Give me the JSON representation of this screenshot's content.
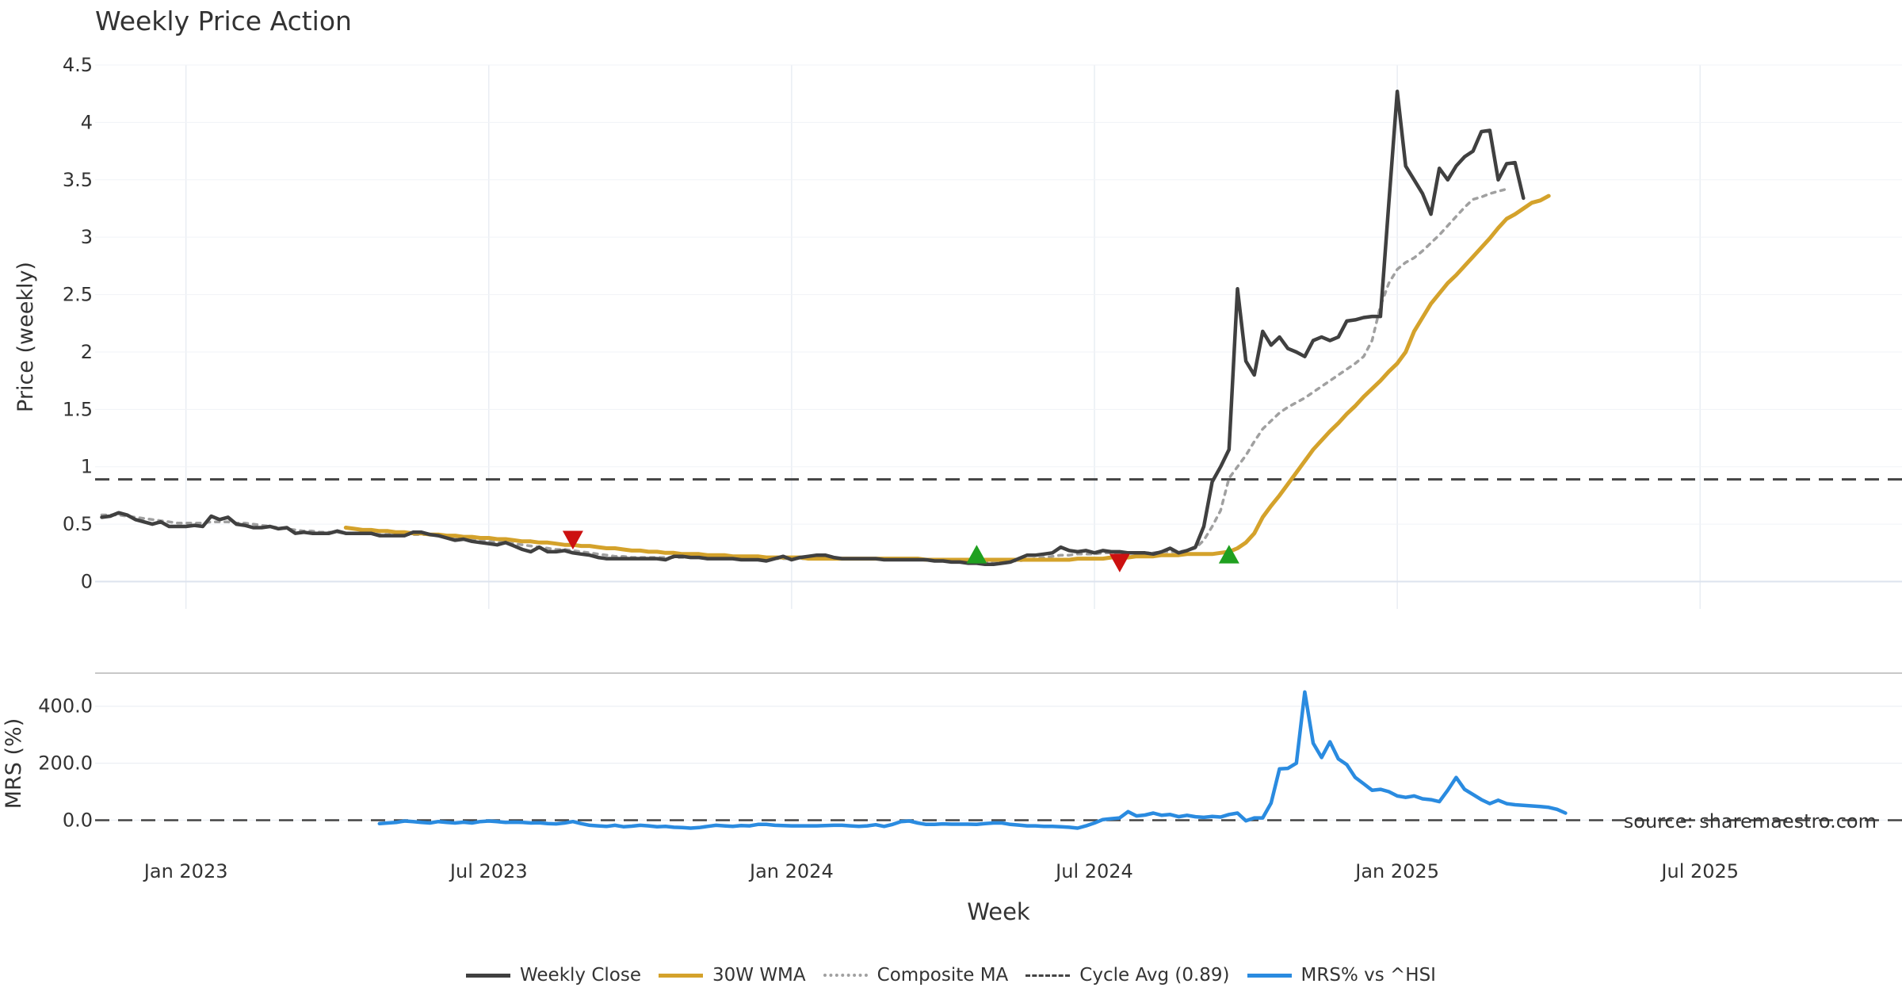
{
  "chart_data": {
    "type": "line",
    "title": "Weekly Price Action",
    "source_note": "source: sharemaestro.com",
    "xlabel": "Week",
    "x_ticks": [
      "Jan 2023",
      "Jul 2023",
      "Jan 2024",
      "Jul 2024",
      "Jan 2025",
      "Jul 2025"
    ],
    "x_tick_weeks": [
      10,
      46,
      82,
      118,
      154,
      190
    ],
    "x_range_weeks": [
      -0.8,
      214
    ],
    "price_panel": {
      "ylabel": "Price (weekly)",
      "ylim": [
        -0.1,
        4.5
      ],
      "y_ticks": [
        "0",
        "0.5",
        "1",
        "1.5",
        "2",
        "2.5",
        "3",
        "3.5",
        "4",
        "4.5"
      ],
      "y_tick_values": [
        0,
        0.5,
        1,
        1.5,
        2,
        2.5,
        3,
        3.5,
        4,
        4.5
      ],
      "cycle_avg": 0.89
    },
    "mrs_panel": {
      "ylabel": "MRS (%)",
      "ylim": [
        -60,
        480
      ],
      "y_ticks": [
        "0.0",
        "200.0",
        "400.0"
      ],
      "y_tick_values": [
        0,
        200,
        400
      ],
      "zero_line": 0
    },
    "series": [
      {
        "name": "Weekly Close",
        "color": "#404040",
        "start_week": 0,
        "values": [
          0.56,
          0.57,
          0.6,
          0.58,
          0.54,
          0.52,
          0.5,
          0.52,
          0.48,
          0.48,
          0.48,
          0.49,
          0.48,
          0.57,
          0.54,
          0.56,
          0.5,
          0.49,
          0.47,
          0.47,
          0.48,
          0.46,
          0.47,
          0.42,
          0.43,
          0.42,
          0.42,
          0.42,
          0.44,
          0.42,
          0.42,
          0.42,
          0.42,
          0.4,
          0.4,
          0.4,
          0.4,
          0.43,
          0.43,
          0.41,
          0.4,
          0.38,
          0.36,
          0.37,
          0.35,
          0.34,
          0.33,
          0.32,
          0.34,
          0.31,
          0.28,
          0.26,
          0.3,
          0.26,
          0.26,
          0.27,
          0.25,
          0.24,
          0.23,
          0.21,
          0.2,
          0.2,
          0.2,
          0.2,
          0.2,
          0.2,
          0.2,
          0.19,
          0.22,
          0.22,
          0.21,
          0.21,
          0.2,
          0.2,
          0.2,
          0.2,
          0.19,
          0.19,
          0.19,
          0.18,
          0.2,
          0.22,
          0.19,
          0.21,
          0.22,
          0.23,
          0.23,
          0.21,
          0.2,
          0.2,
          0.2,
          0.2,
          0.2,
          0.19,
          0.19,
          0.19,
          0.19,
          0.19,
          0.19,
          0.18,
          0.18,
          0.17,
          0.17,
          0.16,
          0.16,
          0.15,
          0.15,
          0.16,
          0.17,
          0.2,
          0.23,
          0.23,
          0.24,
          0.25,
          0.3,
          0.27,
          0.26,
          0.27,
          0.25,
          0.27,
          0.26,
          0.26,
          0.25,
          0.25,
          0.25,
          0.24,
          0.26,
          0.29,
          0.25,
          0.27,
          0.3,
          0.48,
          0.87,
          1.0,
          1.15,
          2.55,
          1.92,
          1.8,
          2.18,
          2.06,
          2.13,
          2.03,
          2.0,
          1.96,
          2.1,
          2.13,
          2.1,
          2.13,
          2.27,
          2.28,
          2.3,
          2.31,
          2.31,
          3.3,
          4.27,
          3.62,
          3.5,
          3.38,
          3.2,
          3.6,
          3.5,
          3.62,
          3.7,
          3.75,
          3.92,
          3.93,
          3.5,
          3.64,
          3.65,
          3.34
        ]
      },
      {
        "name": "30W WMA",
        "color": "#d4a22b",
        "start_week": 29,
        "values": [
          0.47,
          0.46,
          0.45,
          0.45,
          0.44,
          0.44,
          0.43,
          0.43,
          0.42,
          0.42,
          0.41,
          0.41,
          0.4,
          0.4,
          0.39,
          0.39,
          0.38,
          0.38,
          0.37,
          0.37,
          0.36,
          0.35,
          0.35,
          0.34,
          0.34,
          0.33,
          0.32,
          0.32,
          0.31,
          0.31,
          0.3,
          0.29,
          0.29,
          0.28,
          0.27,
          0.27,
          0.26,
          0.26,
          0.25,
          0.25,
          0.24,
          0.24,
          0.24,
          0.23,
          0.23,
          0.23,
          0.22,
          0.22,
          0.22,
          0.22,
          0.21,
          0.21,
          0.21,
          0.21,
          0.21,
          0.2,
          0.2,
          0.2,
          0.2,
          0.2,
          0.2,
          0.2,
          0.2,
          0.2,
          0.2,
          0.2,
          0.2,
          0.2,
          0.2,
          0.19,
          0.19,
          0.19,
          0.19,
          0.19,
          0.19,
          0.19,
          0.19,
          0.19,
          0.19,
          0.19,
          0.19,
          0.19,
          0.19,
          0.19,
          0.19,
          0.19,
          0.19,
          0.2,
          0.2,
          0.2,
          0.2,
          0.21,
          0.21,
          0.21,
          0.22,
          0.22,
          0.22,
          0.23,
          0.23,
          0.23,
          0.24,
          0.24,
          0.24,
          0.24,
          0.25,
          0.26,
          0.29,
          0.34,
          0.42,
          0.56,
          0.66,
          0.75,
          0.85,
          0.95,
          1.05,
          1.15,
          1.23,
          1.31,
          1.38,
          1.46,
          1.53,
          1.61,
          1.68,
          1.75,
          1.83,
          1.9,
          2.0,
          2.18,
          2.3,
          2.42,
          2.51,
          2.6,
          2.67,
          2.75,
          2.83,
          2.91,
          2.99,
          3.08,
          3.16,
          3.2,
          3.25,
          3.3,
          3.32,
          3.36
        ]
      },
      {
        "name": "Composite MA",
        "color": "#a0a0a0",
        "start_week": 0,
        "values": [
          0.58,
          0.58,
          0.58,
          0.57,
          0.56,
          0.55,
          0.54,
          0.53,
          0.52,
          0.51,
          0.51,
          0.51,
          0.51,
          0.52,
          0.52,
          0.52,
          0.51,
          0.51,
          0.5,
          0.49,
          0.48,
          0.47,
          0.46,
          0.45,
          0.44,
          0.44,
          0.43,
          0.43,
          0.43,
          0.42,
          0.42,
          0.42,
          0.42,
          0.41,
          0.41,
          0.41,
          0.41,
          0.41,
          0.41,
          0.41,
          0.4,
          0.4,
          0.39,
          0.38,
          0.37,
          0.36,
          0.35,
          0.34,
          0.34,
          0.33,
          0.32,
          0.31,
          0.3,
          0.29,
          0.28,
          0.28,
          0.27,
          0.26,
          0.25,
          0.24,
          0.23,
          0.22,
          0.22,
          0.21,
          0.21,
          0.21,
          0.21,
          0.21,
          0.21,
          0.21,
          0.21,
          0.21,
          0.21,
          0.21,
          0.21,
          0.2,
          0.2,
          0.2,
          0.2,
          0.2,
          0.2,
          0.2,
          0.2,
          0.2,
          0.2,
          0.2,
          0.2,
          0.2,
          0.2,
          0.2,
          0.2,
          0.2,
          0.2,
          0.2,
          0.2,
          0.2,
          0.19,
          0.19,
          0.19,
          0.19,
          0.18,
          0.18,
          0.18,
          0.18,
          0.17,
          0.17,
          0.17,
          0.17,
          0.18,
          0.18,
          0.19,
          0.2,
          0.21,
          0.22,
          0.23,
          0.23,
          0.24,
          0.24,
          0.24,
          0.25,
          0.25,
          0.25,
          0.25,
          0.25,
          0.25,
          0.25,
          0.26,
          0.26,
          0.26,
          0.27,
          0.29,
          0.36,
          0.48,
          0.62,
          0.9,
          1.0,
          1.1,
          1.22,
          1.33,
          1.4,
          1.47,
          1.52,
          1.56,
          1.6,
          1.65,
          1.7,
          1.75,
          1.8,
          1.85,
          1.9,
          1.96,
          2.1,
          2.4,
          2.6,
          2.72,
          2.78,
          2.82,
          2.88,
          2.95,
          3.02,
          3.1,
          3.18,
          3.26,
          3.33,
          3.35,
          3.38,
          3.4,
          3.42
        ]
      },
      {
        "name": "Cycle Avg (0.89)",
        "color": "#444444",
        "value": 0.89
      },
      {
        "name": "MRS% vs ^HSI",
        "color": "#2a8be0",
        "start_week": 33,
        "values": [
          -12,
          -10,
          -8,
          -3,
          -5,
          -8,
          -10,
          -5,
          -8,
          -10,
          -7,
          -10,
          -5,
          -3,
          -5,
          -8,
          -7,
          -8,
          -10,
          -9,
          -12,
          -13,
          -10,
          -5,
          -12,
          -18,
          -20,
          -22,
          -18,
          -23,
          -21,
          -18,
          -20,
          -23,
          -22,
          -25,
          -26,
          -28,
          -26,
          -22,
          -18,
          -20,
          -22,
          -19,
          -20,
          -15,
          -15,
          -18,
          -19,
          -20,
          -20,
          -20,
          -20,
          -19,
          -18,
          -18,
          -20,
          -22,
          -20,
          -16,
          -22,
          -15,
          -5,
          -3,
          -10,
          -15,
          -15,
          -13,
          -14,
          -14,
          -14,
          -15,
          -12,
          -10,
          -10,
          -15,
          -17,
          -20,
          -20,
          -22,
          -22,
          -23,
          -25,
          -28,
          -20,
          -10,
          2,
          5,
          8,
          30,
          15,
          18,
          25,
          17,
          20,
          12,
          17,
          12,
          10,
          13,
          11,
          20,
          25,
          -2,
          8,
          8,
          60,
          180,
          182,
          200,
          450,
          270,
          220,
          275,
          215,
          195,
          150,
          128,
          105,
          108,
          100,
          85,
          80,
          85,
          75,
          72,
          65,
          105,
          150,
          108,
          90,
          72,
          58,
          70,
          58,
          54,
          52,
          50,
          48,
          45,
          38,
          25
        ]
      }
    ],
    "markers": [
      {
        "type": "sell",
        "color": "#cc1111",
        "week": 56,
        "value": 0.37
      },
      {
        "type": "buy",
        "color": "#20a020",
        "week": 104,
        "value": 0.23
      },
      {
        "type": "sell",
        "color": "#cc1111",
        "week": 121,
        "value": 0.17
      },
      {
        "type": "buy",
        "color": "#20a020",
        "week": 134,
        "value": 0.23
      }
    ]
  }
}
